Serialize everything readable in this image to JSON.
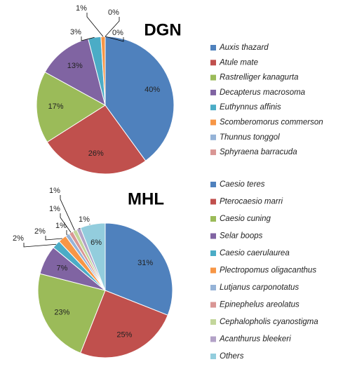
{
  "chart_data": [
    {
      "type": "pie",
      "title": "DGN",
      "categories": [
        "Auxis thazard",
        "Atule mate",
        "Rastrelliger kanagurta",
        "Decapterus macrosoma",
        "Euthynnus affinis",
        "Scomberomorus commerson",
        "Thunnus tonggol",
        "Sphyraena barracuda"
      ],
      "values": [
        40,
        26,
        17,
        13,
        3,
        1,
        0,
        0
      ],
      "value_labels": [
        "40%",
        "26%",
        "17%",
        "13%",
        "3%",
        "1%",
        "0%",
        "0%"
      ],
      "colors": [
        "#4F81BD",
        "#C0504D",
        "#9BBB59",
        "#8064A2",
        "#4BACC6",
        "#F79646",
        "#95B3D7",
        "#D99694"
      ]
    },
    {
      "type": "pie",
      "title": "MHL",
      "categories": [
        "Caesio teres",
        "Pterocaesio marri",
        "Caesio cuning",
        "Selar boops",
        "Caesio caerulaurea",
        "Plectropomus oligacanthus",
        "Lutjanus carponotatus",
        "Epinephelus areolatus",
        "Cephalopholis cyanostigma",
        "Acanthurus bleekeri",
        "Others"
      ],
      "values": [
        31,
        25,
        23,
        7,
        2,
        2,
        1,
        1,
        1,
        1,
        6
      ],
      "value_labels": [
        "31%",
        "25%",
        "23%",
        "7%",
        "2%",
        "2%",
        "1%",
        "1%",
        "1%",
        "1%",
        "6%"
      ],
      "colors": [
        "#4F81BD",
        "#C0504D",
        "#9BBB59",
        "#8064A2",
        "#4BACC6",
        "#F79646",
        "#95B3D7",
        "#D99694",
        "#C3D69B",
        "#B3A2C7",
        "#93CDDD"
      ]
    }
  ]
}
